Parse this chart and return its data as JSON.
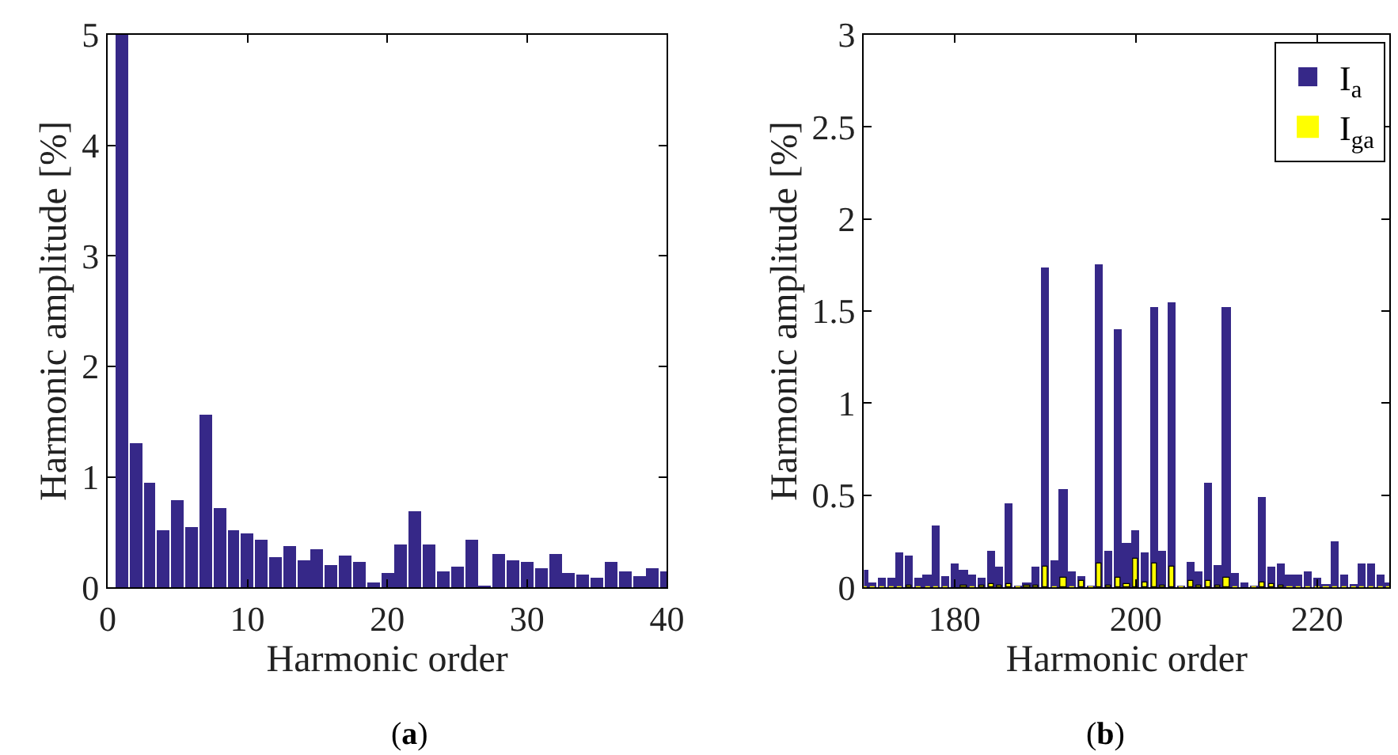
{
  "chart_data": [
    {
      "type": "bar",
      "x": [
        1,
        2,
        3,
        4,
        5,
        6,
        7,
        8,
        9,
        10,
        11,
        12,
        13,
        14,
        15,
        16,
        17,
        18,
        19,
        20,
        21,
        22,
        23,
        24,
        25,
        26,
        27,
        28,
        29,
        30,
        31,
        32,
        33,
        34,
        35,
        36,
        37,
        38,
        39,
        40
      ],
      "values": [
        5,
        1.31,
        0.95,
        0.52,
        0.79,
        0.55,
        1.56,
        0.72,
        0.52,
        0.49,
        0.43,
        0.28,
        0.38,
        0.24,
        0.34,
        0.2,
        0.29,
        0.23,
        0.04,
        0.13,
        0.39,
        0.69,
        0.39,
        0.14,
        0.19,
        0.43,
        0.01,
        0.31,
        0.25,
        0.23,
        0.17,
        0.3,
        0.13,
        0.11,
        0.09,
        0.23,
        0.14,
        0.1,
        0.17,
        0.14
      ],
      "color": "#362888",
      "xlim": [
        0,
        40
      ],
      "xticks": [
        0,
        10,
        20,
        30,
        40
      ],
      "ylim": [
        0,
        5
      ],
      "yticks": [
        0,
        1,
        2,
        3,
        4,
        5
      ],
      "xlabel": "Harmonic order",
      "ylabel": "Harmonic amplitude [%]",
      "annotations": [
        "(a)"
      ]
    },
    {
      "type": "bar",
      "x": [
        170,
        171,
        172,
        173,
        174,
        175,
        176,
        177,
        178,
        179,
        180,
        181,
        182,
        183,
        184,
        185,
        186,
        187,
        188,
        189,
        190,
        191,
        192,
        193,
        194,
        195,
        196,
        197,
        198,
        199,
        200,
        201,
        202,
        203,
        204,
        205,
        206,
        207,
        208,
        209,
        210,
        211,
        212,
        213,
        214,
        215,
        216,
        217,
        218,
        219,
        220,
        221,
        222,
        223,
        224,
        225,
        226,
        227,
        228
      ],
      "series": [
        {
          "name": "I$_{a}$",
          "color": "#362888",
          "values": [
            0.1,
            0.03,
            0.05,
            0.05,
            0.19,
            0.17,
            0.05,
            0.07,
            0.34,
            0.06,
            0.13,
            0.1,
            0.07,
            0.05,
            0.2,
            0.11,
            0.46,
            0.01,
            0.03,
            0.11,
            1.74,
            0.15,
            0.53,
            0.09,
            0.06,
            0.01,
            1.75,
            0.2,
            1.4,
            0.24,
            0.31,
            0.19,
            1.52,
            0.2,
            1.55,
            0.01,
            0.14,
            0.09,
            0.57,
            0.12,
            1.52,
            0.08,
            0.03,
            0.01,
            0.49,
            0.11,
            0.13,
            0.07,
            0.07,
            0.09,
            0.05,
            0.02,
            0.25,
            0.07,
            0.02,
            0.13,
            0.13,
            0.07,
            0.03
          ]
        },
        {
          "name": "I$_{ga}$",
          "color": "#ffff00",
          "values": [
            0,
            0,
            0,
            0,
            0,
            0.01,
            0,
            0,
            0,
            0,
            null,
            0.01,
            0,
            0.01,
            0.02,
            0.01,
            0.02,
            0,
            0.01,
            0.01,
            0.11,
            0,
            0.05,
            0,
            0.04,
            0,
            0.13,
            0.01,
            0.05,
            0.02,
            0.16,
            0.03,
            0.13,
            0.01,
            0.11,
            0,
            0.04,
            0.01,
            0.04,
            0.01,
            0.05,
            0,
            null,
            0,
            0.03,
            0.02,
            0.01,
            0,
            0,
            0,
            0,
            0,
            0,
            0,
            0,
            0,
            0,
            0,
            0
          ]
        }
      ],
      "xlim": [
        170,
        228
      ],
      "xticks": [
        180,
        200,
        220
      ],
      "ylim": [
        0,
        3
      ],
      "yticks": [
        0,
        0.5,
        1,
        1.5,
        2,
        2.5,
        3
      ],
      "xlabel": "Harmonic order",
      "ylabel": "Harmonic amplitude [%]",
      "annotations": [
        "(b)"
      ],
      "legend": "top right"
    }
  ]
}
